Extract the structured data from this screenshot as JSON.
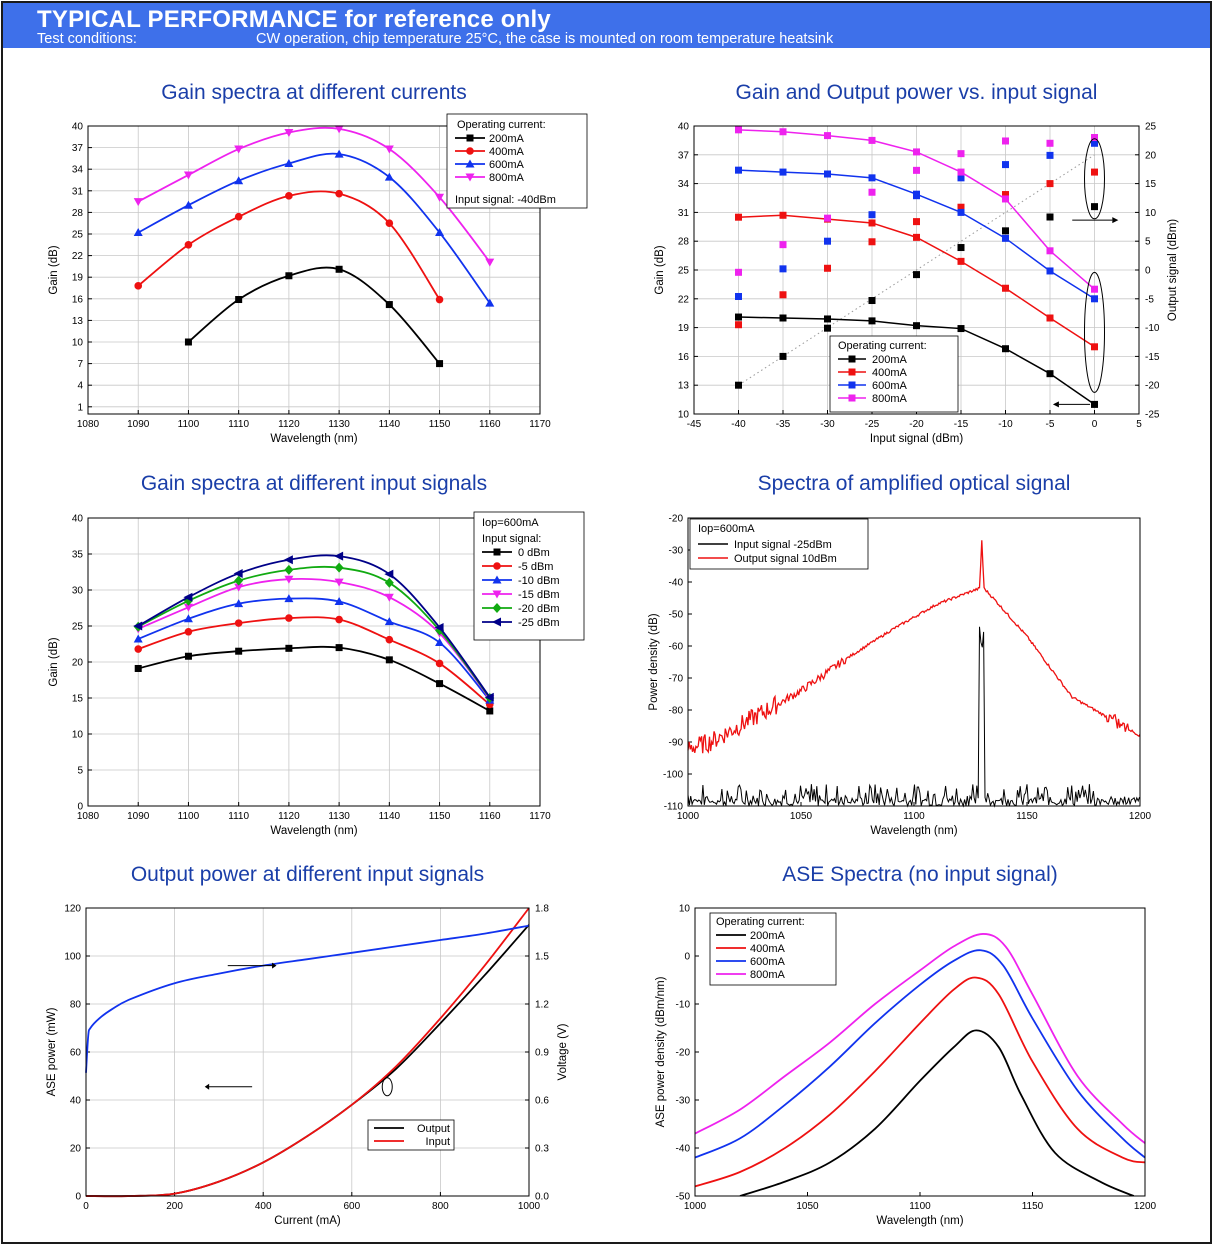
{
  "header": {
    "title": "TYPICAL PERFORMANCE for reference only",
    "conditions_label": "Test conditions:",
    "conditions_text": "CW operation, chip temperature 25°C, the case is mounted on room temperature heatsink",
    "banner_color": "#3e70ea"
  },
  "chart_data": [
    {
      "id": "gain-vs-wavelength-current",
      "type": "line",
      "title": "Gain spectra at different currents",
      "xlabel": "Wavelength (nm)",
      "ylabel": "Gain (dB)",
      "xlim": [
        1080,
        1170
      ],
      "ylim": [
        0,
        40
      ],
      "xticks": [
        1080,
        1090,
        1100,
        1110,
        1120,
        1130,
        1140,
        1150,
        1160,
        1170
      ],
      "yticks": [
        1,
        4,
        7,
        10,
        13,
        16,
        19,
        22,
        25,
        28,
        31,
        34,
        37,
        40
      ],
      "grid": true,
      "legend_position": "top-right",
      "legend_title": "Operating current:",
      "legend_footer": "Input signal: -40dBm",
      "series": [
        {
          "name": "200mA",
          "color": "#000000",
          "marker": "square",
          "x": [
            1100,
            1110,
            1120,
            1130,
            1140,
            1150
          ],
          "y": [
            10.0,
            15.9,
            19.2,
            20.1,
            15.2,
            7.0
          ]
        },
        {
          "name": "400mA",
          "color": "#ee1111",
          "marker": "circle",
          "x": [
            1090,
            1100,
            1110,
            1120,
            1130,
            1140,
            1150
          ],
          "y": [
            17.8,
            23.5,
            27.4,
            30.3,
            30.6,
            26.5,
            15.9
          ]
        },
        {
          "name": "600mA",
          "color": "#1133ee",
          "marker": "triangle-up",
          "x": [
            1090,
            1100,
            1110,
            1120,
            1130,
            1140,
            1150,
            1160
          ],
          "y": [
            25.2,
            29.0,
            32.4,
            34.8,
            36.1,
            32.9,
            25.2,
            15.4
          ]
        },
        {
          "name": "800mA",
          "color": "#ee22ee",
          "marker": "triangle-down",
          "x": [
            1090,
            1100,
            1110,
            1120,
            1130,
            1140,
            1150,
            1160
          ],
          "y": [
            29.5,
            33.2,
            36.8,
            39.1,
            39.6,
            36.8,
            30.1,
            21.1
          ]
        }
      ]
    },
    {
      "id": "gain-output-vs-input",
      "type": "scatter",
      "title": "Gain and Output power vs. input signal",
      "xlabel": "Input signal (dBm)",
      "ylabel": "Gain (dB)",
      "y2label": "Output signal (dBm)",
      "xlim": [
        -45,
        5
      ],
      "ylim": [
        10,
        40
      ],
      "y2lim": [
        -25,
        25
      ],
      "xticks": [
        -45,
        -40,
        -35,
        -30,
        -25,
        -20,
        -15,
        -10,
        -5,
        0,
        5
      ],
      "yticks": [
        10,
        13,
        16,
        19,
        22,
        25,
        28,
        31,
        34,
        37,
        40
      ],
      "y2ticks": [
        -25,
        -20,
        -15,
        -10,
        -5,
        0,
        5,
        10,
        15,
        20,
        25
      ],
      "grid": true,
      "legend_position": "bottom-right",
      "legend_title": "Operating current:",
      "series": [
        {
          "name": "200mA",
          "color": "#000000",
          "x": [
            -40,
            -35,
            -30,
            -25,
            -20,
            -15,
            -10,
            -5,
            0
          ],
          "gain": [
            20.1,
            20.0,
            19.9,
            19.7,
            19.2,
            18.9,
            16.8,
            14.2,
            11.0
          ],
          "output": [
            -20.0,
            -15.0,
            -10.1,
            -5.3,
            -0.8,
            3.9,
            6.8,
            9.2,
            11.0
          ]
        },
        {
          "name": "400mA",
          "color": "#ee1111",
          "x": [
            -40,
            -35,
            -30,
            -25,
            -20,
            -15,
            -10,
            -5,
            0
          ],
          "gain": [
            30.5,
            30.7,
            30.3,
            29.9,
            28.4,
            25.9,
            23.1,
            20.0,
            17.0
          ],
          "output": [
            -9.5,
            -4.3,
            0.3,
            4.9,
            8.4,
            10.9,
            13.1,
            15.0,
            17.0
          ]
        },
        {
          "name": "600mA",
          "color": "#1133ee",
          "x": [
            -40,
            -35,
            -30,
            -25,
            -20,
            -15,
            -10,
            -5,
            0
          ],
          "gain": [
            35.4,
            35.2,
            35.0,
            34.6,
            32.9,
            31.0,
            28.3,
            24.9,
            22.0
          ],
          "output": [
            -4.6,
            0.2,
            5.0,
            9.6,
            12.9,
            16.0,
            18.3,
            19.9,
            22.0
          ]
        },
        {
          "name": "800mA",
          "color": "#ee22ee",
          "x": [
            -40,
            -35,
            -30,
            -25,
            -20,
            -15,
            -10,
            -5,
            0
          ],
          "gain": [
            39.6,
            39.4,
            39.0,
            38.5,
            37.3,
            35.2,
            32.4,
            27.0,
            23.0
          ],
          "output": [
            -0.4,
            4.4,
            9.0,
            13.5,
            17.3,
            20.2,
            22.4,
            22.0,
            23.0
          ]
        }
      ]
    },
    {
      "id": "gain-vs-wavelength-input",
      "type": "line",
      "title": "Gain spectra at different input signals",
      "xlabel": "Wavelength (nm)",
      "ylabel": "Gain (dB)",
      "xlim": [
        1080,
        1170
      ],
      "ylim": [
        0,
        40
      ],
      "xticks": [
        1080,
        1090,
        1100,
        1110,
        1120,
        1130,
        1140,
        1150,
        1160,
        1170
      ],
      "yticks": [
        0,
        5,
        10,
        15,
        20,
        25,
        30,
        35,
        40
      ],
      "grid": true,
      "legend_position": "top-right",
      "legend_top": "Iop=600mA",
      "legend_title": "Input signal:",
      "series": [
        {
          "name": "0 dBm",
          "color": "#000000",
          "marker": "square",
          "x": [
            1090,
            1100,
            1110,
            1120,
            1130,
            1140,
            1150,
            1160
          ],
          "y": [
            19.1,
            20.8,
            21.5,
            21.9,
            22.0,
            20.3,
            17.0,
            13.2
          ]
        },
        {
          "name": "-5 dBm",
          "color": "#ee1111",
          "marker": "circle",
          "x": [
            1090,
            1100,
            1110,
            1120,
            1130,
            1140,
            1150,
            1160
          ],
          "y": [
            21.8,
            24.2,
            25.4,
            26.1,
            25.9,
            23.1,
            19.8,
            14.1
          ]
        },
        {
          "name": "-10 dBm",
          "color": "#1133ee",
          "marker": "triangle-up",
          "x": [
            1090,
            1100,
            1110,
            1120,
            1130,
            1140,
            1150,
            1160
          ],
          "y": [
            23.2,
            26.0,
            28.1,
            28.8,
            28.4,
            25.6,
            22.7,
            14.7
          ]
        },
        {
          "name": "-15 dBm",
          "color": "#ee22ee",
          "marker": "triangle-down",
          "x": [
            1090,
            1100,
            1110,
            1120,
            1130,
            1140,
            1150,
            1160
          ],
          "y": [
            24.6,
            27.6,
            30.4,
            31.5,
            31.1,
            29.0,
            24.0,
            14.9
          ]
        },
        {
          "name": "-20 dBm",
          "color": "#11aa11",
          "marker": "diamond",
          "x": [
            1090,
            1100,
            1110,
            1120,
            1130,
            1140,
            1150,
            1160
          ],
          "y": [
            24.9,
            28.5,
            31.3,
            32.8,
            33.1,
            31.0,
            24.4,
            15.0
          ]
        },
        {
          "name": "-25 dBm",
          "color": "#000088",
          "marker": "triangle-left",
          "x": [
            1090,
            1100,
            1110,
            1120,
            1130,
            1140,
            1150,
            1160
          ],
          "y": [
            25.0,
            29.0,
            32.3,
            34.2,
            34.7,
            32.2,
            24.8,
            15.1
          ]
        }
      ]
    },
    {
      "id": "amplified-spectra",
      "type": "line",
      "title": "Spectra of amplified optical signal",
      "xlabel": "Wavelength (nm)",
      "ylabel": "Power density (dB)",
      "xlim": [
        1000,
        1200
      ],
      "ylim": [
        -110,
        -20
      ],
      "xticks": [
        1000,
        1050,
        1100,
        1150,
        1200
      ],
      "yticks": [
        -110,
        -100,
        -90,
        -80,
        -70,
        -60,
        -50,
        -40,
        -30,
        -20
      ],
      "grid": false,
      "legend_position": "top-left",
      "legend_top": "Iop=600mA",
      "series": [
        {
          "name": "Input signal -25dBm",
          "color": "#000000",
          "noise_floor": [
            -110,
            -103
          ],
          "peak_x": 1130,
          "peak_y": -62
        },
        {
          "name": "Output signal 10dBm",
          "color": "#ee1111",
          "x": [
            1000,
            1010,
            1030,
            1050,
            1070,
            1090,
            1110,
            1125,
            1129,
            1130,
            1131,
            1135,
            1150,
            1170,
            1190,
            1200
          ],
          "y": [
            -92,
            -90,
            -82,
            -74,
            -64,
            -55,
            -47,
            -43,
            -42,
            -27,
            -42,
            -45,
            -57,
            -76,
            -84,
            -88
          ]
        }
      ]
    },
    {
      "id": "output-power-vs-current",
      "type": "line",
      "title": "Output power at different input signals",
      "xlabel": "Current (mA)",
      "ylabel": "ASE power (mW)",
      "y2label": "Voltage (V)",
      "xlim": [
        0,
        1000
      ],
      "ylim": [
        0,
        120
      ],
      "y2lim": [
        0,
        1.8
      ],
      "xticks": [
        0,
        200,
        400,
        600,
        800,
        1000
      ],
      "yticks": [
        0,
        20,
        40,
        60,
        80,
        100,
        120
      ],
      "y2ticks": [
        "0.0",
        "0.3",
        "0.6",
        "0.9",
        "1.2",
        "1.5",
        "1.8"
      ],
      "grid": true,
      "legend_position": "bottom-right",
      "series": [
        {
          "name": "Output",
          "color": "#000000",
          "x": [
            0,
            100,
            200,
            300,
            400,
            500,
            600,
            700,
            800,
            900,
            1000
          ],
          "y": [
            0,
            0,
            1,
            6,
            14,
            25,
            38,
            53,
            72,
            92,
            113
          ]
        },
        {
          "name": "Input",
          "color": "#ee1111",
          "x": [
            0,
            100,
            200,
            300,
            400,
            500,
            600,
            700,
            800,
            900,
            1000
          ],
          "y": [
            0,
            0,
            1,
            6,
            14,
            25,
            38,
            54,
            74,
            96,
            120
          ]
        },
        {
          "name": "Voltage",
          "axis": "y2",
          "color": "#1133ee",
          "x": [
            0,
            5,
            10,
            30,
            60,
            100,
            200,
            300,
            400,
            500,
            600,
            700,
            800,
            900,
            1000
          ],
          "y": [
            0.77,
            1.0,
            1.05,
            1.11,
            1.17,
            1.23,
            1.33,
            1.39,
            1.44,
            1.48,
            1.52,
            1.56,
            1.6,
            1.64,
            1.69
          ]
        }
      ]
    },
    {
      "id": "ase-spectra",
      "type": "line",
      "title": "ASE Spectra (no input signal)",
      "xlabel": "Wavelength (nm)",
      "ylabel": "ASE power density (dBm/nm)",
      "xlim": [
        1000,
        1200
      ],
      "ylim": [
        -50,
        10
      ],
      "xticks": [
        1000,
        1050,
        1100,
        1150,
        1200
      ],
      "yticks": [
        -50,
        -40,
        -30,
        -20,
        -10,
        0,
        10
      ],
      "grid": false,
      "legend_position": "top-left",
      "legend_title": "Operating current:",
      "series": [
        {
          "name": "200mA",
          "color": "#000000",
          "x": [
            1020,
            1040,
            1060,
            1080,
            1100,
            1115,
            1125,
            1135,
            1145,
            1160,
            1180,
            1195
          ],
          "y": [
            -50,
            -47,
            -43,
            -36,
            -26,
            -19,
            -15.5,
            -19,
            -29,
            -41,
            -47,
            -50
          ]
        },
        {
          "name": "400mA",
          "color": "#ee1111",
          "x": [
            1000,
            1020,
            1040,
            1060,
            1080,
            1100,
            1115,
            1125,
            1135,
            1150,
            1170,
            1190,
            1200
          ],
          "y": [
            -48,
            -45,
            -40,
            -33,
            -24,
            -14,
            -7,
            -4.5,
            -8,
            -22,
            -36,
            -42,
            -43
          ]
        },
        {
          "name": "600mA",
          "color": "#1133ee",
          "x": [
            1000,
            1020,
            1040,
            1060,
            1080,
            1100,
            1115,
            1127,
            1137,
            1150,
            1170,
            1190,
            1200
          ],
          "y": [
            -42,
            -38,
            -31,
            -23,
            -14,
            -6,
            -1,
            1.2,
            -2,
            -13,
            -28,
            -38,
            -42
          ]
        },
        {
          "name": "800mA",
          "color": "#ee22ee",
          "x": [
            1000,
            1020,
            1040,
            1060,
            1080,
            1100,
            1115,
            1128,
            1138,
            1150,
            1170,
            1190,
            1200
          ],
          "y": [
            -37,
            -32,
            -25,
            -18,
            -10,
            -3,
            2,
            4.6,
            2,
            -8,
            -25,
            -35,
            -39
          ]
        }
      ]
    }
  ]
}
